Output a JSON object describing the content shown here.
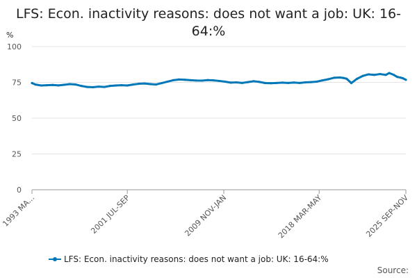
{
  "chart_data": {
    "type": "line",
    "title": "LFS: Econ. inactivity reasons: does not want a job: UK: 16-64:%",
    "ylabel": "%",
    "xlabel": "",
    "ylim": [
      0,
      100
    ],
    "yticks": [
      0,
      25,
      50,
      75,
      100
    ],
    "xtick_labels": [
      "1993 MA...",
      "2001 JUL-SEP",
      "2009 NOV-JAN",
      "2018 MAR-MAY",
      "2025 SEP-NOV"
    ],
    "xtick_years": [
      1993.2,
      2001.5,
      2009.9,
      2018.2,
      2025.75
    ],
    "grid": true,
    "legend_position": "bottom",
    "series": [
      {
        "name": "LFS: Econ. inactivity reasons: does not want a job: UK: 16-64:%",
        "color": "#0077b6",
        "x": [
          1993.2,
          1993.5,
          1994.0,
          1994.5,
          1995.0,
          1995.5,
          1996.0,
          1996.5,
          1997.0,
          1997.5,
          1998.0,
          1998.5,
          1999.0,
          1999.5,
          2000.0,
          2000.5,
          2001.0,
          2001.5,
          2002.0,
          2002.5,
          2003.0,
          2003.5,
          2004.0,
          2004.5,
          2005.0,
          2005.5,
          2006.0,
          2006.5,
          2007.0,
          2007.5,
          2008.0,
          2008.5,
          2009.0,
          2009.5,
          2010.0,
          2010.5,
          2011.0,
          2011.5,
          2012.0,
          2012.5,
          2013.0,
          2013.5,
          2014.0,
          2014.5,
          2015.0,
          2015.5,
          2016.0,
          2016.5,
          2017.0,
          2017.5,
          2018.0,
          2018.5,
          2019.0,
          2019.5,
          2020.0,
          2020.3,
          2020.6,
          2021.0,
          2021.5,
          2022.0,
          2022.5,
          2023.0,
          2023.5,
          2024.0,
          2024.3,
          2024.7,
          2025.0,
          2025.3,
          2025.5,
          2025.75
        ],
        "y": [
          74.5,
          73.5,
          72.8,
          73.0,
          73.2,
          72.9,
          73.3,
          73.8,
          73.5,
          72.5,
          71.8,
          71.6,
          72.0,
          71.8,
          72.5,
          72.8,
          73.0,
          72.8,
          73.5,
          74.0,
          74.2,
          73.8,
          73.5,
          74.5,
          75.5,
          76.5,
          77.0,
          76.8,
          76.5,
          76.3,
          76.2,
          76.6,
          76.4,
          76.0,
          75.5,
          74.8,
          75.0,
          74.6,
          75.2,
          75.8,
          75.3,
          74.5,
          74.4,
          74.6,
          74.8,
          74.6,
          74.9,
          74.6,
          75.0,
          75.2,
          75.5,
          76.4,
          77.2,
          78.2,
          78.4,
          78.1,
          77.5,
          74.5,
          77.5,
          79.5,
          80.6,
          80.2,
          80.8,
          80.2,
          81.5,
          80.2,
          78.8,
          78.3,
          77.8,
          76.8
        ]
      }
    ]
  },
  "legend_label": "LFS: Econ. inactivity reasons: does not want a job: UK: 16-64:%",
  "source_label": "Source:"
}
